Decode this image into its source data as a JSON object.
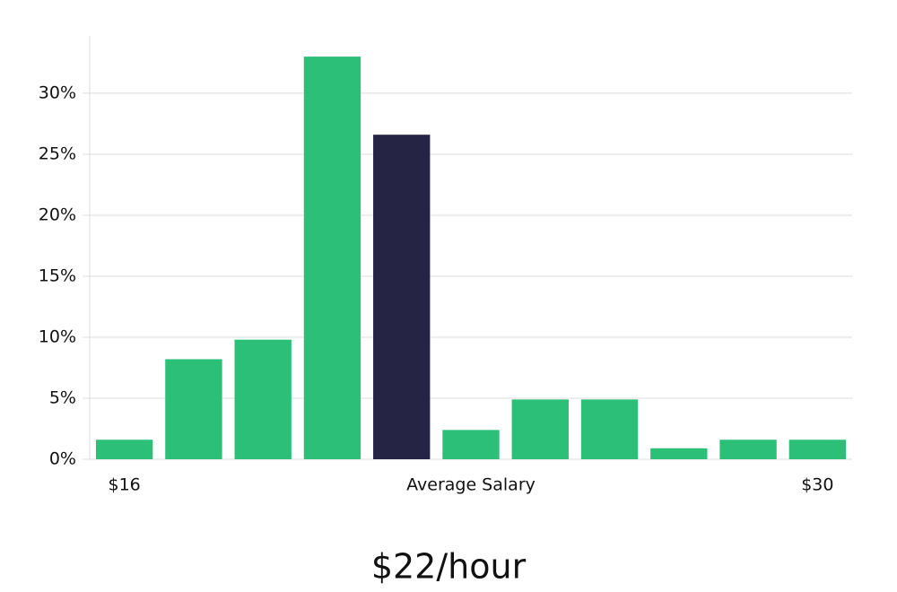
{
  "chart_data": {
    "type": "bar",
    "subtitle": "$22/hour",
    "categories": [
      "$16",
      null,
      null,
      null,
      null,
      "Average Salary",
      null,
      null,
      null,
      null,
      "$30"
    ],
    "values": [
      1.6,
      8.2,
      9.8,
      33.0,
      26.6,
      2.4,
      4.9,
      4.9,
      0.9,
      1.6,
      1.6
    ],
    "colors": [
      "#2bbf78",
      "#2bbf78",
      "#2bbf78",
      "#2bbf78",
      "#262444",
      "#2bbf78",
      "#2bbf78",
      "#2bbf78",
      "#2bbf78",
      "#2bbf78",
      "#2bbf78"
    ],
    "ylim": [
      0,
      34.7
    ],
    "yticks": [
      {
        "value": 0,
        "label": "0%"
      },
      {
        "value": 5,
        "label": "5%"
      },
      {
        "value": 10,
        "label": "10%"
      },
      {
        "value": 15,
        "label": "15%"
      },
      {
        "value": 20,
        "label": "20%"
      },
      {
        "value": 25,
        "label": "25%"
      },
      {
        "value": 30,
        "label": "30%"
      }
    ],
    "grid": true
  }
}
